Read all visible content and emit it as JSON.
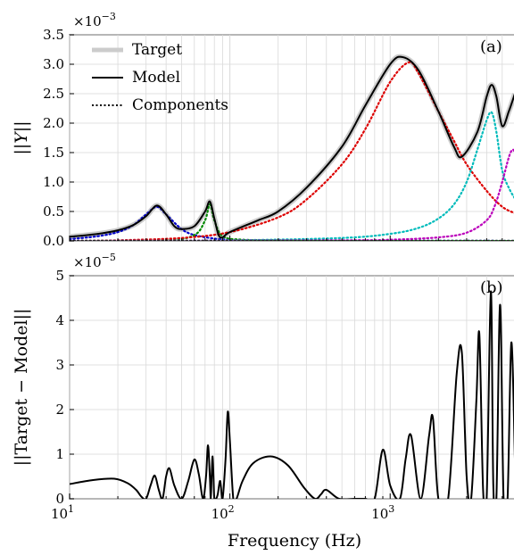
{
  "chart_data": [
    {
      "id": "a",
      "type": "line",
      "panel_label": "(a)",
      "ylabel": "||Y||",
      "ylabel_parts": [
        "||",
        "Y",
        "||"
      ],
      "scale_label": "×10",
      "scale_exp": "−3",
      "xscale": "log",
      "xlim": [
        10,
        6000
      ],
      "ylim": [
        0,
        3.5
      ],
      "yticks": [
        "0.0",
        "0.5",
        "1.0",
        "1.5",
        "2.0",
        "2.5",
        "3.0",
        "3.5"
      ],
      "grid": true,
      "legend_position": "top-left",
      "legend": [
        "Target",
        "Model",
        "Components"
      ],
      "series": [
        {
          "name": "Target",
          "style": "thick-light",
          "color": "#cccccc",
          "x": [
            10,
            15,
            20,
            25,
            30,
            35,
            40,
            45,
            50,
            60,
            70,
            75,
            80,
            85,
            90,
            100,
            150,
            200,
            300,
            500,
            700,
            1000,
            1200,
            1500,
            2000,
            2500,
            2800,
            3500,
            4000,
            4300,
            4600,
            5000,
            5500,
            6000
          ],
          "y": [
            0.07,
            0.12,
            0.18,
            0.27,
            0.42,
            0.6,
            0.45,
            0.25,
            0.2,
            0.25,
            0.5,
            0.67,
            0.38,
            0.1,
            0.06,
            0.15,
            0.35,
            0.5,
            0.9,
            1.6,
            2.3,
            3.0,
            3.12,
            2.9,
            2.2,
            1.6,
            1.43,
            1.85,
            2.45,
            2.65,
            2.45,
            1.95,
            2.2,
            2.5
          ]
        },
        {
          "name": "Model",
          "style": "solid",
          "color": "#000000",
          "x": [
            10,
            15,
            20,
            25,
            30,
            35,
            40,
            45,
            50,
            60,
            70,
            75,
            80,
            85,
            90,
            100,
            150,
            200,
            300,
            500,
            700,
            1000,
            1200,
            1500,
            2000,
            2500,
            2800,
            3500,
            4000,
            4300,
            4600,
            5000,
            5500,
            6000
          ],
          "y": [
            0.07,
            0.12,
            0.18,
            0.27,
            0.42,
            0.6,
            0.45,
            0.25,
            0.2,
            0.25,
            0.5,
            0.67,
            0.38,
            0.1,
            0.06,
            0.15,
            0.35,
            0.5,
            0.9,
            1.6,
            2.3,
            3.0,
            3.12,
            2.9,
            2.2,
            1.6,
            1.43,
            1.85,
            2.45,
            2.65,
            2.45,
            1.95,
            2.2,
            2.5
          ]
        },
        {
          "name": "Components",
          "style": "dotted",
          "color": "#0000cc",
          "x": [
            10,
            15,
            20,
            25,
            30,
            35,
            40,
            50,
            60,
            80,
            100,
            200,
            500,
            1000,
            6000
          ],
          "y": [
            0.03,
            0.08,
            0.15,
            0.27,
            0.45,
            0.58,
            0.45,
            0.2,
            0.1,
            0.04,
            0.02,
            0.01,
            0.005,
            0.003,
            0.001
          ]
        },
        {
          "name": "Components",
          "style": "dotted",
          "color": "#008800",
          "x": [
            10,
            40,
            60,
            70,
            75,
            80,
            90,
            120,
            200,
            500,
            1000,
            6000
          ],
          "y": [
            0.0,
            0.02,
            0.1,
            0.35,
            0.62,
            0.35,
            0.08,
            0.02,
            0.01,
            0.0,
            0.0,
            0.0
          ]
        },
        {
          "name": "Components",
          "style": "dotted",
          "color": "#dd0000",
          "x": [
            10,
            20,
            50,
            100,
            200,
            300,
            500,
            700,
            1000,
            1300,
            1500,
            2000,
            2500,
            3000,
            4000,
            5000,
            6000
          ],
          "y": [
            0.0,
            0.01,
            0.05,
            0.15,
            0.4,
            0.7,
            1.3,
            1.9,
            2.7,
            3.03,
            2.85,
            2.2,
            1.7,
            1.3,
            0.85,
            0.58,
            0.47
          ]
        },
        {
          "name": "Components",
          "style": "dotted",
          "color": "#00bbbb",
          "x": [
            10,
            100,
            500,
            1000,
            1500,
            2000,
            2500,
            3000,
            3500,
            4000,
            4300,
            4600,
            5000,
            5500,
            6000
          ],
          "y": [
            0.0,
            0.01,
            0.05,
            0.12,
            0.22,
            0.38,
            0.62,
            1.0,
            1.55,
            2.05,
            2.18,
            1.85,
            1.2,
            0.9,
            0.72
          ]
        },
        {
          "name": "Components",
          "style": "dotted",
          "color": "#bb00bb",
          "x": [
            10,
            500,
            1000,
            2000,
            3000,
            4000,
            4500,
            5000,
            5500,
            5800,
            6000
          ],
          "y": [
            0.0,
            0.01,
            0.02,
            0.06,
            0.14,
            0.35,
            0.6,
            1.0,
            1.42,
            1.55,
            1.5
          ]
        },
        {
          "name": "Components",
          "style": "dotted",
          "color": "#222222",
          "x": [
            10,
            6000
          ],
          "y": [
            0.0,
            0.0
          ]
        }
      ]
    },
    {
      "id": "b",
      "type": "line",
      "panel_label": "(b)",
      "ylabel": "||Target − Model||",
      "scale_label": "×10",
      "scale_exp": "−5",
      "xscale": "log",
      "xlim": [
        10,
        6000
      ],
      "ylim": [
        0,
        5
      ],
      "yticks": [
        "0",
        "1",
        "2",
        "3",
        "4",
        "5"
      ],
      "xlabel": "Frequency (Hz)",
      "xticks": [
        {
          "base": "10",
          "exp": "1"
        },
        {
          "base": "10",
          "exp": "2"
        },
        {
          "base": "10",
          "exp": "3"
        }
      ],
      "grid": true,
      "series": [
        {
          "name": "",
          "color": "#000000",
          "x": [
            10,
            14,
            19,
            23,
            26,
            28,
            30,
            32,
            34,
            36,
            38,
            40,
            42,
            45,
            50,
            55,
            60,
            64,
            68,
            71,
            73,
            75,
            76,
            77,
            78,
            79,
            80,
            82,
            84,
            87,
            90,
            94,
            97,
            100,
            105,
            110,
            120,
            140,
            180,
            230,
            290,
            340,
            370,
            400,
            480,
            600,
            700,
            800,
            900,
            1000,
            1150,
            1250,
            1350,
            1550,
            1750,
            1850,
            2000,
            2300,
            2600,
            2800,
            3000,
            3200,
            3450,
            3600,
            3800,
            4000,
            4250,
            4400,
            4600,
            4850,
            5100,
            5400,
            5700,
            6000
          ],
          "y": [
            0.33,
            0.42,
            0.45,
            0.35,
            0.2,
            0.05,
            0.0,
            0.3,
            0.52,
            0.2,
            0.0,
            0.5,
            0.68,
            0.3,
            0.0,
            0.4,
            0.88,
            0.55,
            0.0,
            0.5,
            1.2,
            0.5,
            0.0,
            0.55,
            0.95,
            0.5,
            0.0,
            0.0,
            0.1,
            0.4,
            0.0,
            0.9,
            1.95,
            1.3,
            0.0,
            0.0,
            0.4,
            0.8,
            0.95,
            0.75,
            0.25,
            0.0,
            0.1,
            0.2,
            0.0,
            0.0,
            0.0,
            0.0,
            1.1,
            0.3,
            0.0,
            0.9,
            1.42,
            0.0,
            1.42,
            1.8,
            0.0,
            0.0,
            2.8,
            3.28,
            0.5,
            0.0,
            2.2,
            3.7,
            0.2,
            0.0,
            4.65,
            0.3,
            0.0,
            4.35,
            0.0,
            0.0,
            3.5,
            0.9
          ]
        }
      ]
    }
  ]
}
